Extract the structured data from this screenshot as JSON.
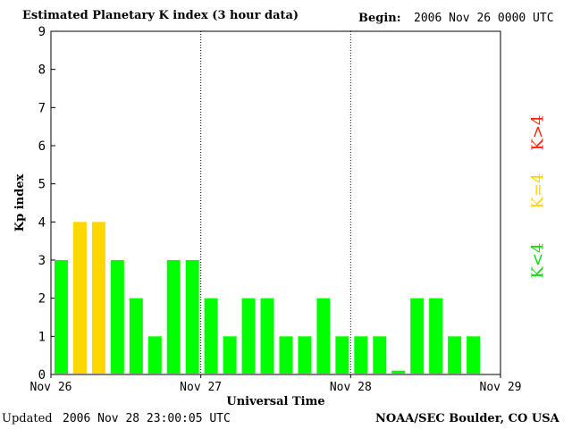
{
  "header": {
    "title": "Estimated Planetary K index (3 hour data)",
    "begin_label": "Begin:",
    "begin_value": "2006 Nov 26 0000 UTC"
  },
  "footer": {
    "updated_label": "Updated",
    "updated_value": "2006 Nov 28 23:00:05 UTC",
    "source": "NOAA/SEC Boulder, CO USA"
  },
  "legend": {
    "k_less_4": "K<4",
    "k_eq_4": "K=4",
    "k_gt_4": "K>4"
  },
  "colors": {
    "k_less_4": "#00ff00",
    "k_eq_4": "#ffd700",
    "k_gt_4": "#ff2200"
  },
  "chart_data": {
    "type": "bar",
    "title": "Estimated Planetary K index (3 hour data)",
    "xlabel": "Universal Time",
    "ylabel": "Kp index",
    "ylim": [
      0,
      9
    ],
    "yticks": [
      "0",
      "1",
      "2",
      "3",
      "4",
      "5",
      "6",
      "7",
      "8",
      "9"
    ],
    "xticks": [
      "Nov 26",
      "Nov 27",
      "Nov 28",
      "Nov 29"
    ],
    "interval_hours": 3,
    "values": [
      3,
      4,
      4,
      3,
      2,
      1,
      3,
      3,
      2,
      1,
      2,
      2,
      1,
      1,
      2,
      1,
      1,
      1,
      0.1,
      2,
      2,
      1,
      1
    ]
  }
}
